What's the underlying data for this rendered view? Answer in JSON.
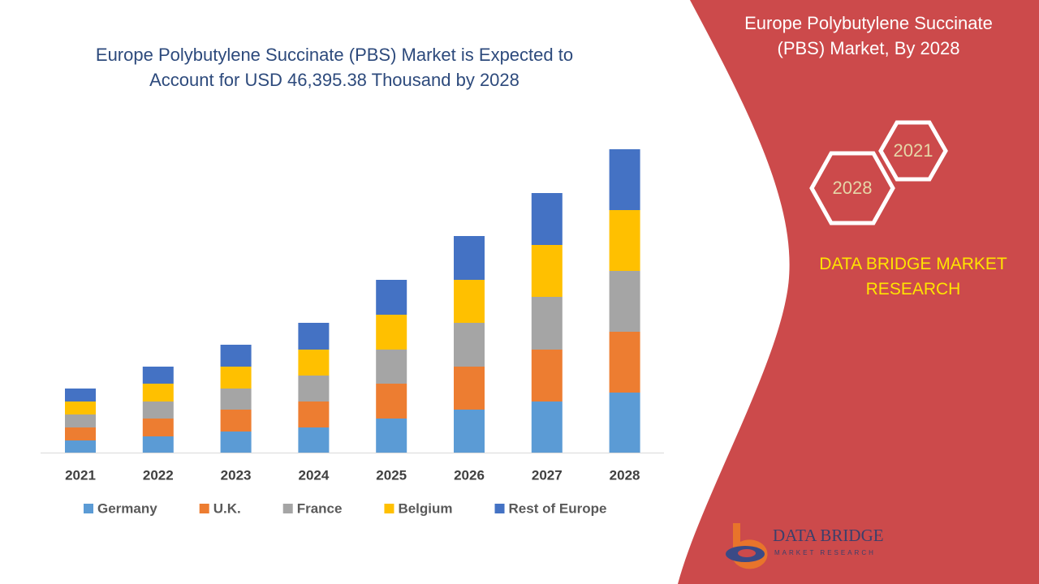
{
  "chart_data": {
    "type": "bar",
    "stacked": true,
    "title": "Europe Polybutylene Succinate (PBS) Market is Expected to Account for USD 46,395.38 Thousand by 2028",
    "categories": [
      "2021",
      "2022",
      "2023",
      "2024",
      "2025",
      "2026",
      "2027",
      "2028"
    ],
    "series": [
      {
        "name": "Germany",
        "color": "#5b9bd5",
        "values": [
          15,
          20,
          26,
          31,
          42,
          53,
          63,
          74
        ]
      },
      {
        "name": "U.K.",
        "color": "#ed7d31",
        "values": [
          16,
          22,
          27,
          32,
          43,
          53,
          64,
          75
        ]
      },
      {
        "name": "France",
        "color": "#a5a5a5",
        "values": [
          16,
          21,
          26,
          32,
          42,
          54,
          65,
          75
        ]
      },
      {
        "name": "Belgium",
        "color": "#ffc000",
        "values": [
          16,
          22,
          27,
          32,
          43,
          53,
          64,
          75
        ]
      },
      {
        "name": "Rest of Europe",
        "color": "#4472c4",
        "values": [
          16,
          21,
          27,
          33,
          43,
          54,
          64,
          75
        ]
      }
    ]
  },
  "side_panel": {
    "title": "Europe Polybutylene Succinate (PBS) Market, By 2028",
    "badges": [
      "2021",
      "2028"
    ],
    "brand": "DATA BRIDGE MARKET RESEARCH",
    "logo": {
      "name": "DATA BRIDGE",
      "tagline": "MARKET RESEARCH"
    }
  }
}
